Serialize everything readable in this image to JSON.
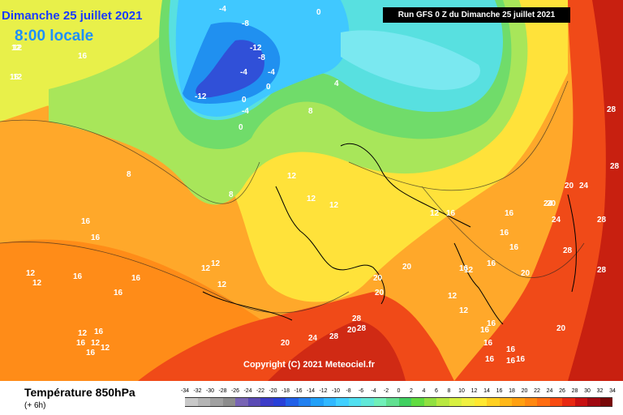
{
  "header": {
    "date_line": "Dimanche 25 juillet 2021",
    "time_line": "8:00 locale",
    "run_line": "Run GFS 0 Z du Dimanche 25 juillet 2021"
  },
  "map": {
    "copyright": "Copyright (C) 2021 Meteociel.fr",
    "isotherm_labels": [
      "12",
      "16",
      "12",
      "16",
      "12",
      "8",
      "-4",
      "-8",
      "-12",
      "-8",
      "-4",
      "-12",
      "0",
      "-4",
      "0",
      "-4",
      "0",
      "4",
      "0",
      "8",
      "8",
      "12",
      "12",
      "12",
      "16",
      "16",
      "12",
      "12",
      "16",
      "16",
      "12",
      "12",
      "12",
      "16",
      "12",
      "16",
      "16",
      "12",
      "12",
      "16",
      "20",
      "20",
      "20",
      "20",
      "16",
      "16",
      "16",
      "12",
      "12",
      "12",
      "16",
      "16",
      "16",
      "20",
      "24",
      "24",
      "28",
      "28",
      "28",
      "28",
      "28",
      "28",
      "24",
      "20",
      "20",
      "24",
      "28",
      "28",
      "16",
      "16",
      "16",
      "16",
      "16",
      "16",
      "20",
      "12",
      "16",
      "20"
    ]
  },
  "footer": {
    "variable": "Température 850hPa",
    "lead_time": "(+ 6h)",
    "scale_ticks": [
      "-34",
      "-32",
      "-30",
      "-28",
      "-26",
      "-24",
      "-22",
      "-20",
      "-18",
      "-16",
      "-14",
      "-12",
      "-10",
      "-8",
      "-6",
      "-4",
      "-2",
      "0",
      "2",
      "4",
      "6",
      "8",
      "10",
      "12",
      "14",
      "16",
      "18",
      "20",
      "22",
      "24",
      "26",
      "28",
      "30",
      "32",
      "34"
    ],
    "scale_colors": [
      "#c8c8c8",
      "#b4b4b4",
      "#a0a0a0",
      "#8c8c8c",
      "#7864b4",
      "#5a4ab4",
      "#3c3cc8",
      "#2840d8",
      "#2060e8",
      "#2080f0",
      "#20a0f8",
      "#30b8ff",
      "#40d0ff",
      "#50e0f0",
      "#60e8d8",
      "#70f0b8",
      "#60e090",
      "#40d060",
      "#60dc40",
      "#90e040",
      "#b8e840",
      "#d8f040",
      "#f0f040",
      "#ffe830",
      "#ffd020",
      "#ffb818",
      "#ffa010",
      "#ff8810",
      "#ff6c10",
      "#f84a10",
      "#e82810",
      "#c81010",
      "#a00810",
      "#780808"
    ]
  }
}
